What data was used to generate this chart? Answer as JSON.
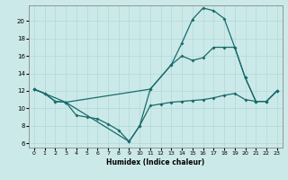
{
  "xlabel": "Humidex (Indice chaleur)",
  "bg_color": "#cce9e9",
  "grid_color": "#b0d8d8",
  "line_color": "#1a6b6b",
  "xlim": [
    -0.5,
    23.5
  ],
  "ylim": [
    5.5,
    21.8
  ],
  "yticks": [
    6,
    8,
    10,
    12,
    14,
    16,
    18,
    20
  ],
  "xticks": [
    0,
    1,
    2,
    3,
    4,
    5,
    6,
    7,
    8,
    9,
    10,
    11,
    12,
    13,
    14,
    15,
    16,
    17,
    18,
    19,
    20,
    21,
    22,
    23
  ],
  "series1": [
    [
      0,
      12.2
    ],
    [
      1,
      11.7
    ],
    [
      2,
      10.8
    ],
    [
      3,
      10.7
    ],
    [
      4,
      9.2
    ],
    [
      5,
      9.0
    ],
    [
      6,
      8.8
    ],
    [
      7,
      8.2
    ],
    [
      8,
      7.5
    ],
    [
      9,
      6.2
    ],
    [
      10,
      8.0
    ],
    [
      11,
      10.3
    ],
    [
      12,
      10.5
    ],
    [
      13,
      10.7
    ],
    [
      14,
      10.8
    ],
    [
      15,
      10.9
    ],
    [
      16,
      11.0
    ],
    [
      17,
      11.2
    ],
    [
      18,
      11.5
    ],
    [
      19,
      11.7
    ],
    [
      20,
      11.0
    ],
    [
      21,
      10.8
    ],
    [
      22,
      10.8
    ],
    [
      23,
      12.0
    ]
  ],
  "series2": [
    [
      0,
      12.2
    ],
    [
      1,
      11.7
    ],
    [
      2,
      10.8
    ],
    [
      3,
      10.7
    ],
    [
      9,
      6.2
    ],
    [
      10,
      8.0
    ],
    [
      11,
      12.2
    ],
    [
      13,
      15.0
    ],
    [
      14,
      17.5
    ],
    [
      15,
      20.2
    ],
    [
      16,
      21.5
    ],
    [
      17,
      21.2
    ],
    [
      18,
      20.3
    ],
    [
      19,
      17.0
    ],
    [
      20,
      13.5
    ],
    [
      21,
      10.8
    ],
    [
      22,
      10.8
    ],
    [
      23,
      12.0
    ]
  ],
  "series3": [
    [
      0,
      12.2
    ],
    [
      3,
      10.7
    ],
    [
      11,
      12.2
    ],
    [
      13,
      15.0
    ],
    [
      14,
      16.0
    ],
    [
      15,
      15.5
    ],
    [
      16,
      15.8
    ],
    [
      17,
      17.0
    ],
    [
      18,
      17.0
    ],
    [
      19,
      17.0
    ],
    [
      20,
      13.5
    ],
    [
      21,
      10.8
    ],
    [
      22,
      10.8
    ],
    [
      23,
      12.0
    ]
  ]
}
